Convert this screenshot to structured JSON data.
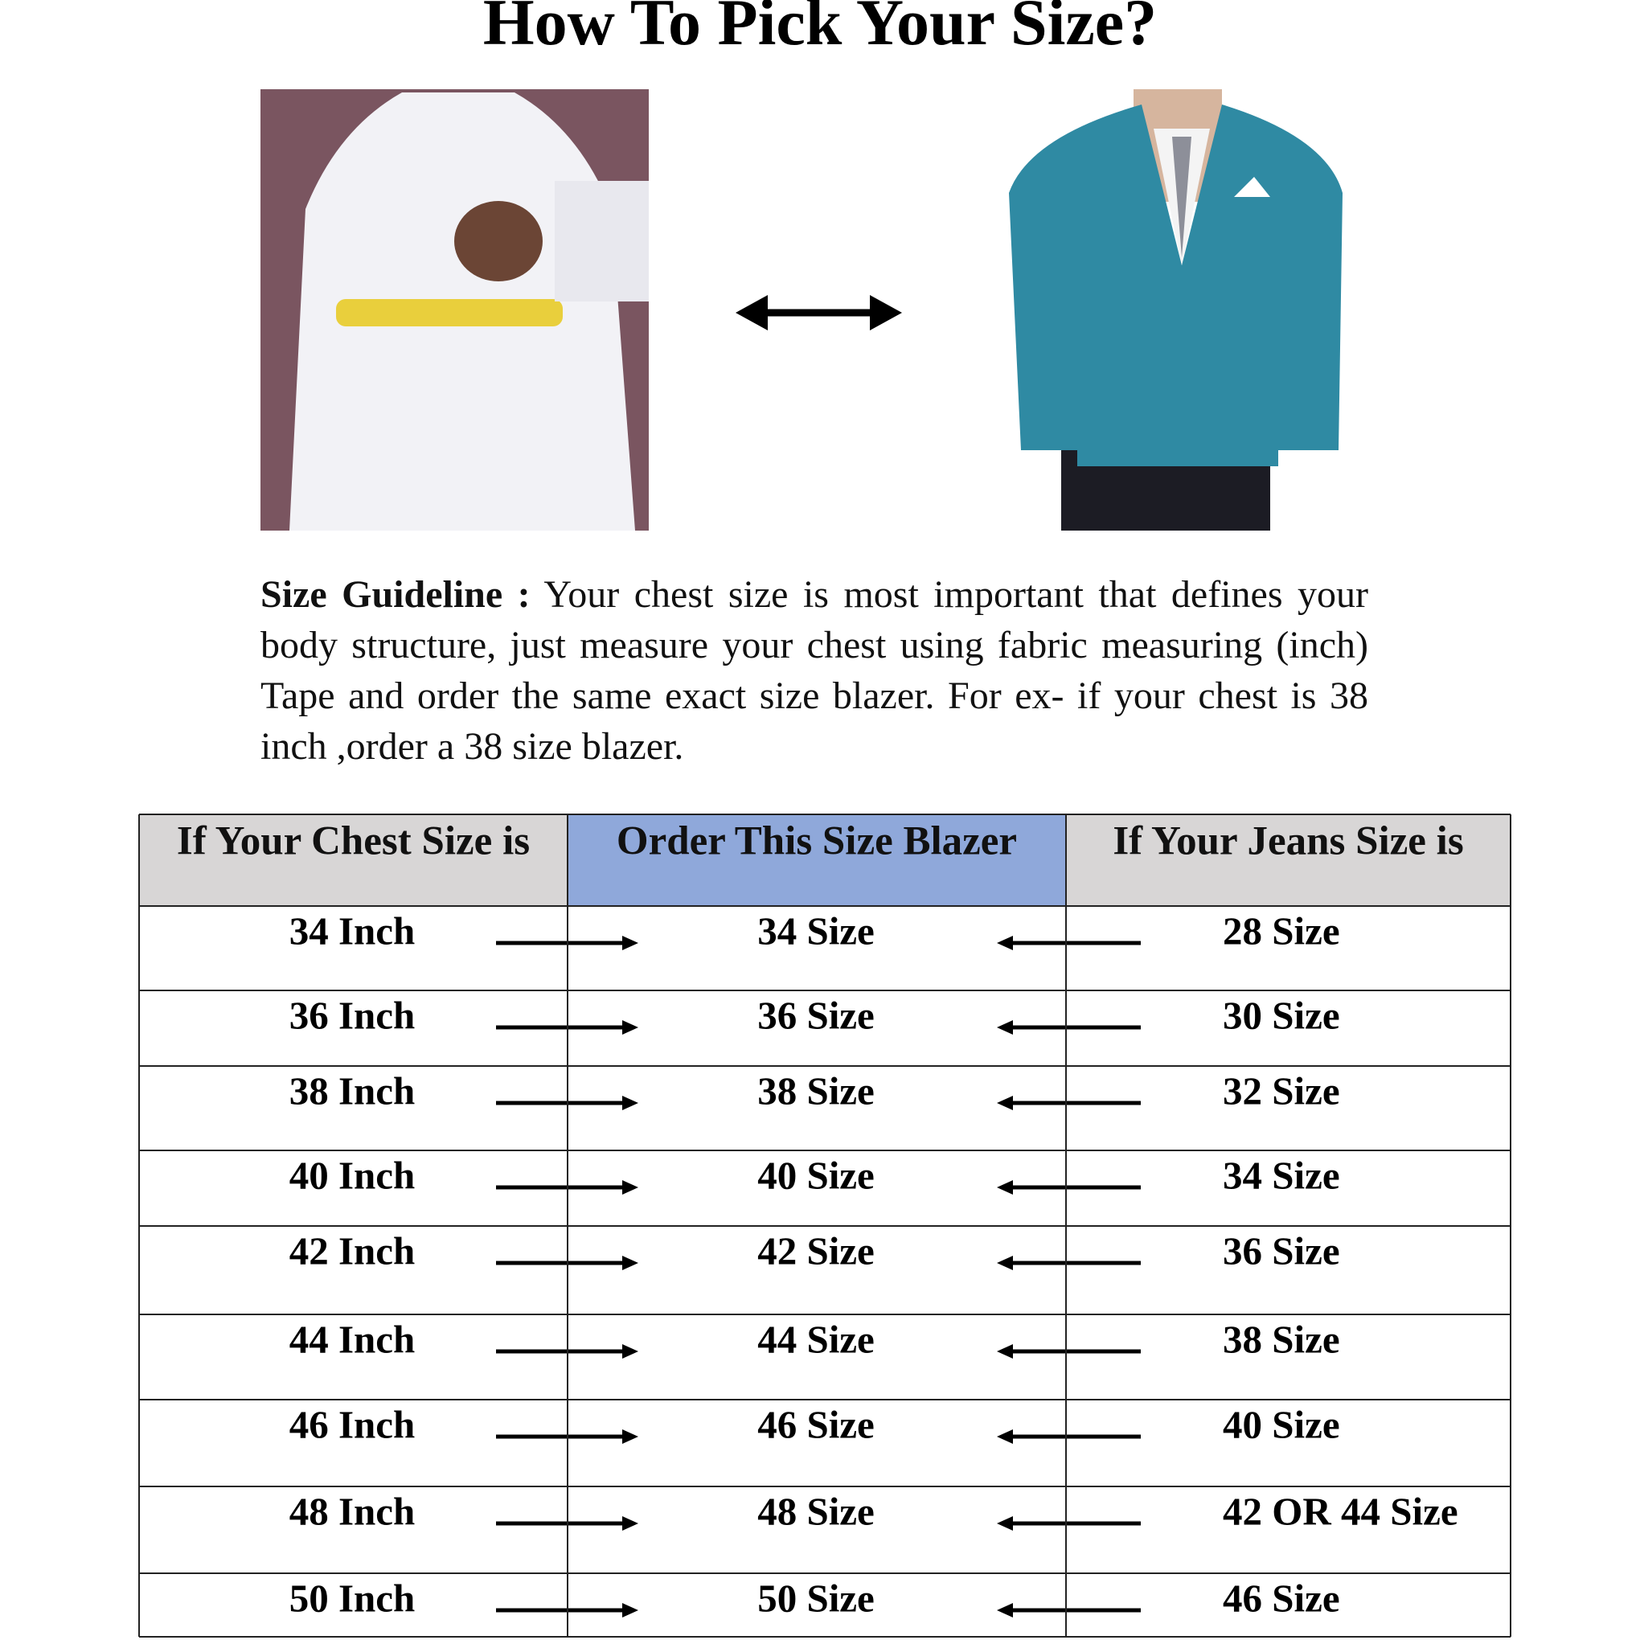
{
  "header": {
    "title": "How To Pick Your Size?"
  },
  "guideline": {
    "label": "Size Guideline :",
    "text": "Your chest size is most important that defines your body structure, just measure your chest using fabric measuring (inch) Tape and order the same exact size blazer. For ex- if your chest is 38 inch ,order a 38 size blazer."
  },
  "table": {
    "columns": [
      "If Your Chest Size is",
      "Order This Size Blazer",
      "If Your Jeans Size is"
    ],
    "rows": [
      [
        "34 Inch",
        "34 Size",
        "28 Size"
      ],
      [
        "36 Inch",
        "36 Size",
        "30 Size"
      ],
      [
        "38 Inch",
        "38 Size",
        "32 Size"
      ],
      [
        "40 Inch",
        "40 Size",
        "34 Size"
      ],
      [
        "42 Inch",
        "42 Size",
        "36 Size"
      ],
      [
        "44 Inch",
        "44 Size",
        "38 Size"
      ],
      [
        "46 Inch",
        "46 Size",
        "40 Size"
      ],
      [
        "48 Inch",
        "48 Size",
        "42 OR 44 Size"
      ],
      [
        "50 Inch",
        "50 Size",
        "46 Size"
      ]
    ]
  }
}
